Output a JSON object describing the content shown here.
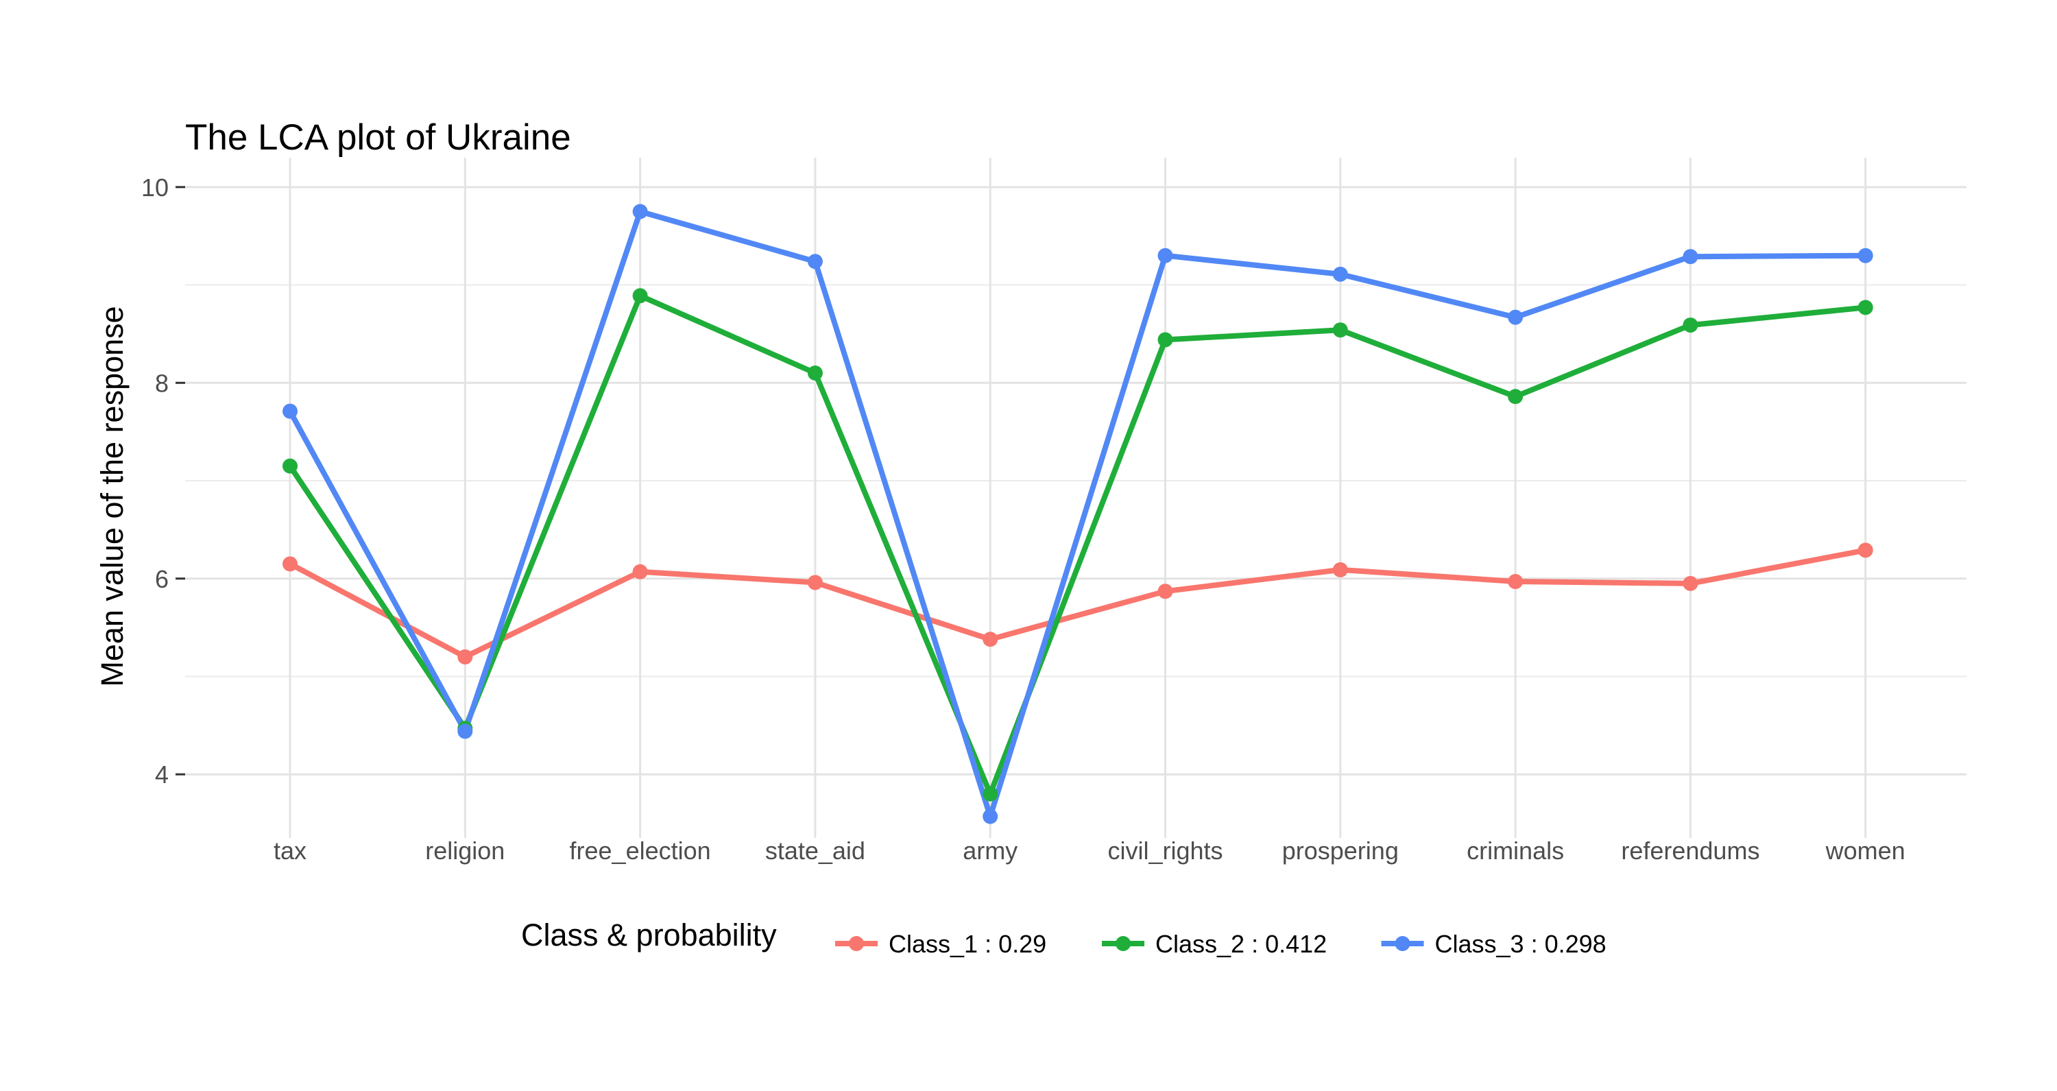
{
  "chart_data": {
    "type": "line",
    "title": "The LCA plot of Ukraine",
    "xlabel": "",
    "ylabel": "Mean value of the response",
    "categories": [
      "tax",
      "religion",
      "free_election",
      "state_aid",
      "army",
      "civil_rights",
      "prospering",
      "criminals",
      "referendums",
      "women"
    ],
    "ylim": [
      3.35,
      10.3
    ],
    "yticks": [
      "4",
      "6",
      "8",
      "10"
    ],
    "grid": true,
    "legend_title": "Class & probability",
    "legend_position": "bottom",
    "series": [
      {
        "name": "Class_1 : 0.29",
        "color": "#F8766D",
        "values": [
          6.15,
          5.2,
          6.07,
          5.96,
          5.38,
          5.87,
          6.09,
          5.97,
          5.95,
          6.29
        ]
      },
      {
        "name": "Class_2 : 0.412",
        "color": "#1FAE3A",
        "values": [
          7.15,
          4.47,
          8.89,
          8.1,
          3.8,
          8.44,
          8.54,
          7.86,
          8.59,
          8.77
        ]
      },
      {
        "name": "Class_3 : 0.298",
        "color": "#5188F5",
        "values": [
          7.71,
          4.44,
          9.75,
          9.24,
          3.57,
          9.3,
          9.11,
          8.67,
          9.29,
          9.3
        ]
      }
    ]
  }
}
